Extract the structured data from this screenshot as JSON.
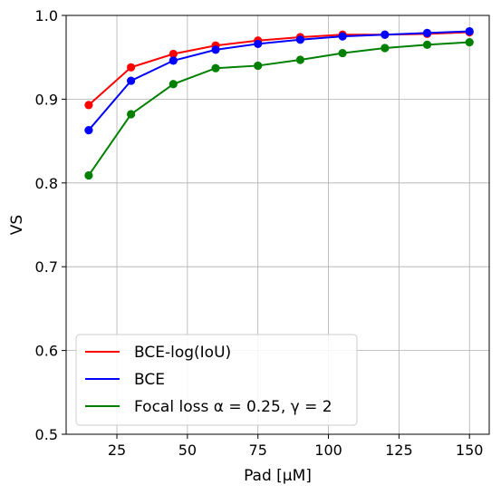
{
  "chart_data": {
    "type": "line",
    "title": "",
    "xlabel": "Pad [μM]",
    "ylabel": "VS",
    "xlim": [
      7,
      157
    ],
    "ylim": [
      0.5,
      1.0
    ],
    "xticks": [
      25,
      50,
      75,
      100,
      125,
      150
    ],
    "yticks": [
      0.5,
      0.6,
      0.7,
      0.8,
      0.9,
      1.0
    ],
    "xtick_labels": [
      "25",
      "50",
      "75",
      "100",
      "125",
      "150"
    ],
    "ytick_labels": [
      "0.5",
      "0.6",
      "0.7",
      "0.8",
      "0.9",
      "1.0"
    ],
    "grid": true,
    "legend_position": "lower-left",
    "x": [
      15,
      30,
      45,
      60,
      75,
      90,
      105,
      120,
      135,
      150
    ],
    "series": [
      {
        "name": "BCE-log(IoU)",
        "color": "#ff0000",
        "values": [
          0.893,
          0.938,
          0.954,
          0.964,
          0.97,
          0.974,
          0.977,
          0.977,
          0.978,
          0.98
        ]
      },
      {
        "name": "BCE",
        "color": "#0000ff",
        "values": [
          0.863,
          0.922,
          0.946,
          0.959,
          0.966,
          0.971,
          0.975,
          0.977,
          0.979,
          0.981
        ]
      },
      {
        "name": "Focal loss α = 0.25, γ = 2",
        "color": "#008000",
        "values": [
          0.809,
          0.882,
          0.918,
          0.937,
          0.94,
          0.947,
          0.955,
          0.961,
          0.965,
          0.968
        ]
      }
    ]
  }
}
